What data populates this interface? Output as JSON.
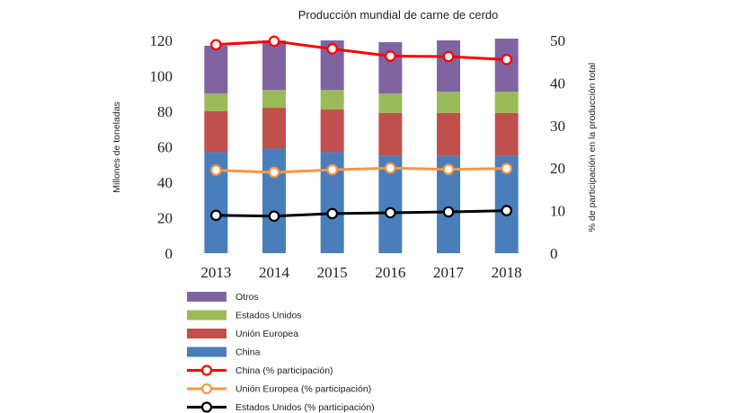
{
  "chart_data": {
    "type": "bar",
    "title": "Producción mundial de carne de cerdo",
    "categories": [
      "2013",
      "2014",
      "2015",
      "2016",
      "2017",
      "2018"
    ],
    "ylabel_left": "Millones de toneladas",
    "ylabel_right": "% de participación en la producción total",
    "ylim_left": [
      0,
      120
    ],
    "ylim_right": [
      0,
      50
    ],
    "yticks_left": [
      "0",
      "20",
      "40",
      "60",
      "80",
      "100",
      "120"
    ],
    "yticks_right": [
      "0",
      "10",
      "20",
      "30",
      "40",
      "50"
    ],
    "stacked_series": [
      {
        "name": "China",
        "color": "#4a7ebb",
        "values": [
          57,
          59,
          57,
          55,
          55,
          55
        ]
      },
      {
        "name": "Unión Europea",
        "color": "#c0504d",
        "values": [
          23,
          23,
          24,
          24,
          24,
          24
        ]
      },
      {
        "name": "Estados Unidos",
        "color": "#9bbb59",
        "values": [
          10,
          10,
          11,
          11,
          12,
          12
        ]
      },
      {
        "name": "Otros",
        "color": "#8064a2",
        "values": [
          27,
          28,
          28,
          29,
          29,
          30
        ]
      }
    ],
    "line_series": [
      {
        "name": "China (% participación)",
        "color": "#ff0000",
        "axis": "right",
        "values": [
          49,
          49.8,
          48,
          46.3,
          46.2,
          45.5
        ]
      },
      {
        "name": "Unión Europea (% participación)",
        "color": "#f79646",
        "axis": "right",
        "values": [
          19.5,
          19,
          19.6,
          20,
          19.7,
          19.9
        ]
      },
      {
        "name": "Estados Unidos (% participación)",
        "color": "#000000",
        "axis": "right",
        "values": [
          8.9,
          8.7,
          9.3,
          9.5,
          9.7,
          10
        ]
      }
    ],
    "legend": [
      {
        "label": "Otros",
        "kind": "bar",
        "color": "#8064a2"
      },
      {
        "label": "Estados Unidos",
        "kind": "bar",
        "color": "#9bbb59"
      },
      {
        "label": "Unión Europea",
        "kind": "bar",
        "color": "#c0504d"
      },
      {
        "label": "China",
        "kind": "bar",
        "color": "#4a7ebb"
      },
      {
        "label": "China (% participación)",
        "kind": "line",
        "color": "#ff0000"
      },
      {
        "label": "Unión Europea (% participación)",
        "kind": "line",
        "color": "#f79646"
      },
      {
        "label": "Estados Unidos (% participación)",
        "kind": "line",
        "color": "#000000"
      }
    ],
    "legend_position": "bottom-left",
    "grid": false
  }
}
